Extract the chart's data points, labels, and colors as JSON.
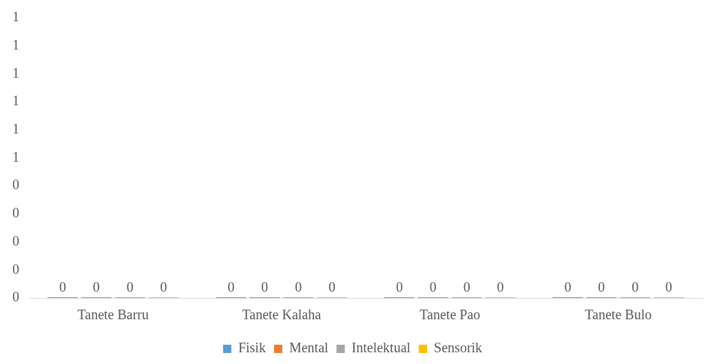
{
  "chart_data": {
    "type": "bar",
    "categories": [
      "Tanete Barru",
      "Tanete Kalaha",
      "Tanete Pao",
      "Tanete Bulo"
    ],
    "series": [
      {
        "name": "Fisik",
        "color": "#5b9bd5",
        "values": [
          0,
          0,
          0,
          0
        ]
      },
      {
        "name": "Mental",
        "color": "#ed7d31",
        "values": [
          0,
          0,
          0,
          0
        ]
      },
      {
        "name": "Intelektual",
        "color": "#a5a5a5",
        "values": [
          0,
          0,
          0,
          0
        ]
      },
      {
        "name": "Sensorik",
        "color": "#ffc000",
        "values": [
          0,
          0,
          0,
          0
        ]
      }
    ],
    "ylim": [
      0,
      1
    ],
    "yticks": [
      {
        "value": 0,
        "label": "0"
      },
      {
        "value": 0.1,
        "label": "0"
      },
      {
        "value": 0.2,
        "label": "0"
      },
      {
        "value": 0.3,
        "label": "0"
      },
      {
        "value": 0.4,
        "label": "0"
      },
      {
        "value": 0.5,
        "label": "1"
      },
      {
        "value": 0.6,
        "label": "1"
      },
      {
        "value": 0.7,
        "label": "1"
      },
      {
        "value": 0.8,
        "label": "1"
      },
      {
        "value": 0.9,
        "label": "1"
      },
      {
        "value": 1,
        "label": "1"
      }
    ],
    "data_labels": true,
    "grid": false,
    "legend": "bottom"
  }
}
